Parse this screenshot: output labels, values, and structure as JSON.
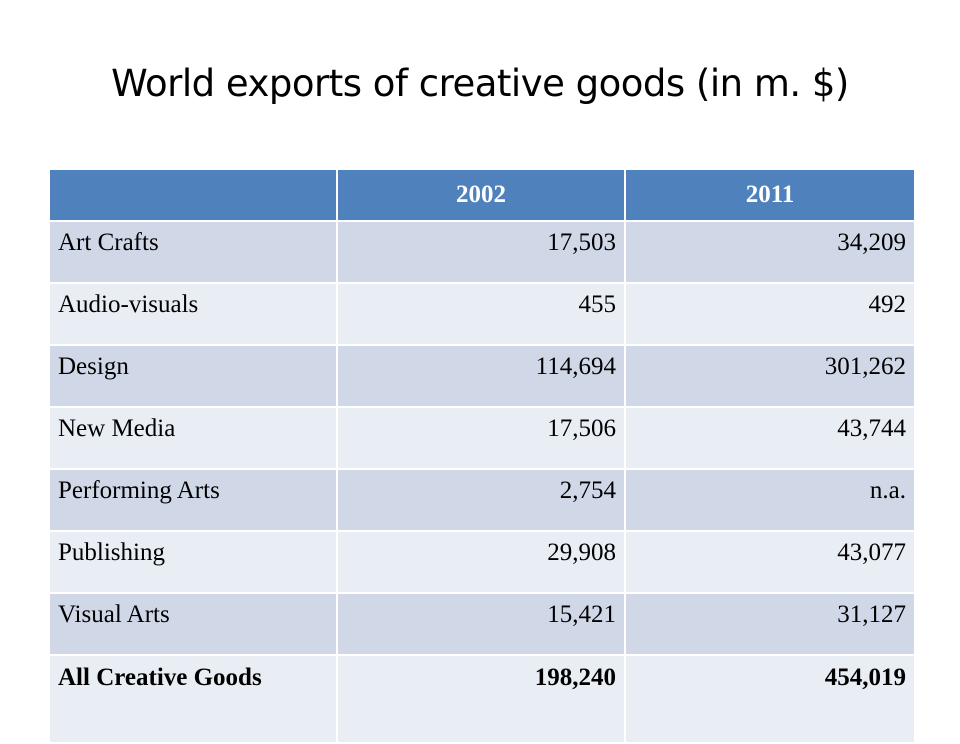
{
  "title": "World exports of creative goods (in m. $)",
  "table": {
    "header": [
      "",
      "2002",
      "2011"
    ],
    "rows": [
      {
        "label": "Art Crafts",
        "v2002": "17,503",
        "v2011": "34,209"
      },
      {
        "label": "Audio-visuals",
        "v2002": "455",
        "v2011": "492"
      },
      {
        "label": "Design",
        "v2002": "114,694",
        "v2011": "301,262"
      },
      {
        "label": "New Media",
        "v2002": "17,506",
        "v2011": "43,744"
      },
      {
        "label": "Performing Arts",
        "v2002": "2,754",
        "v2011": "n.a."
      },
      {
        "label": "Publishing",
        "v2002": "29,908",
        "v2011": "43,077"
      },
      {
        "label": "Visual Arts",
        "v2002": "15,421",
        "v2011": "31,127"
      }
    ],
    "total": {
      "label": "All Creative Goods",
      "v2002": "198,240",
      "v2011": "454,019"
    }
  },
  "colors": {
    "header_bg": "#4f81bd",
    "row_odd_bg": "#d0d8e8",
    "row_even_bg": "#e9edf4"
  }
}
